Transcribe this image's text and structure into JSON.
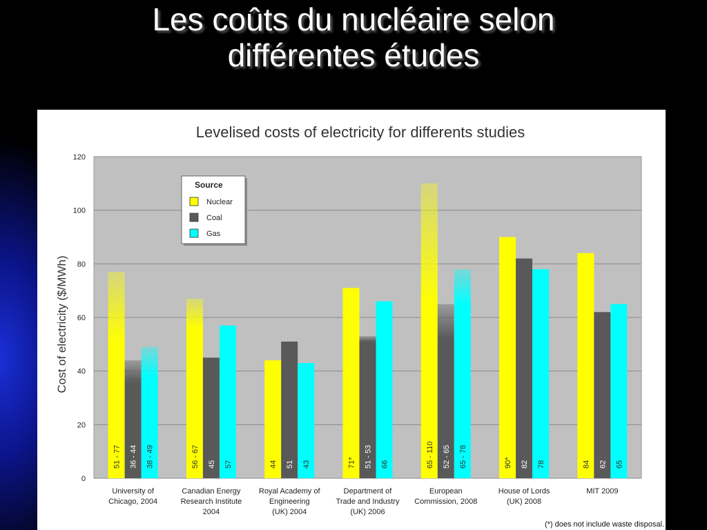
{
  "slide": {
    "title_line1": "Les coûts du nucléaire selon",
    "title_line2": "différentes études"
  },
  "colors": {
    "nuclear": "#FFFF00",
    "coal": "#595959",
    "gas": "#00FFFF",
    "plot_background": "#C0C0C0",
    "frame_background": "#FFFFFF",
    "slide_background": "#000000",
    "slide_accent": "#1A2FD8"
  },
  "chart_data": {
    "type": "bar",
    "title": "Levelised costs of electricity for differents studies",
    "ylabel": "Cost of electricity ($/MWh)",
    "xlabel": "",
    "ylim": [
      0,
      120
    ],
    "yticks": [
      0,
      20,
      40,
      60,
      80,
      100,
      120
    ],
    "grid": true,
    "legend": {
      "title": "Source",
      "placement": "upper-left",
      "entries": [
        "Nuclear",
        "Coal",
        "Gas"
      ]
    },
    "categories": [
      [
        "University of",
        "Chicago, 2004"
      ],
      [
        "Canadian Energy",
        "Research Institute",
        "2004"
      ],
      [
        "Royal Academy of",
        "Engineering",
        "(UK) 2004"
      ],
      [
        "Department of",
        "Trade and Industry",
        "(UK) 2006"
      ],
      [
        "European",
        "Commission, 2008"
      ],
      [
        "House of Lords",
        "(UK) 2008"
      ],
      [
        "MIT 2009"
      ]
    ],
    "series": [
      {
        "name": "Nuclear",
        "values": [
          [
            51,
            77
          ],
          [
            56,
            67
          ],
          44,
          71,
          [
            65,
            110
          ],
          90,
          84
        ],
        "labels": [
          "51 - 77",
          "56 - 67",
          "44",
          "71*",
          "65 - 110",
          "90*",
          "84"
        ]
      },
      {
        "name": "Coal",
        "values": [
          [
            36,
            44
          ],
          45,
          51,
          [
            51,
            53
          ],
          [
            52,
            65
          ],
          82,
          62
        ],
        "labels": [
          "36 - 44",
          "45",
          "51",
          "51 - 53",
          "52 - 65",
          "82",
          "62"
        ]
      },
      {
        "name": "Gas",
        "values": [
          [
            38,
            49
          ],
          57,
          43,
          66,
          [
            65,
            78
          ],
          78,
          65
        ],
        "labels": [
          "38 - 49",
          "57",
          "43",
          "66",
          "65 - 78",
          "78",
          "65"
        ]
      }
    ],
    "footnote": "(*) does not include waste disposal."
  }
}
